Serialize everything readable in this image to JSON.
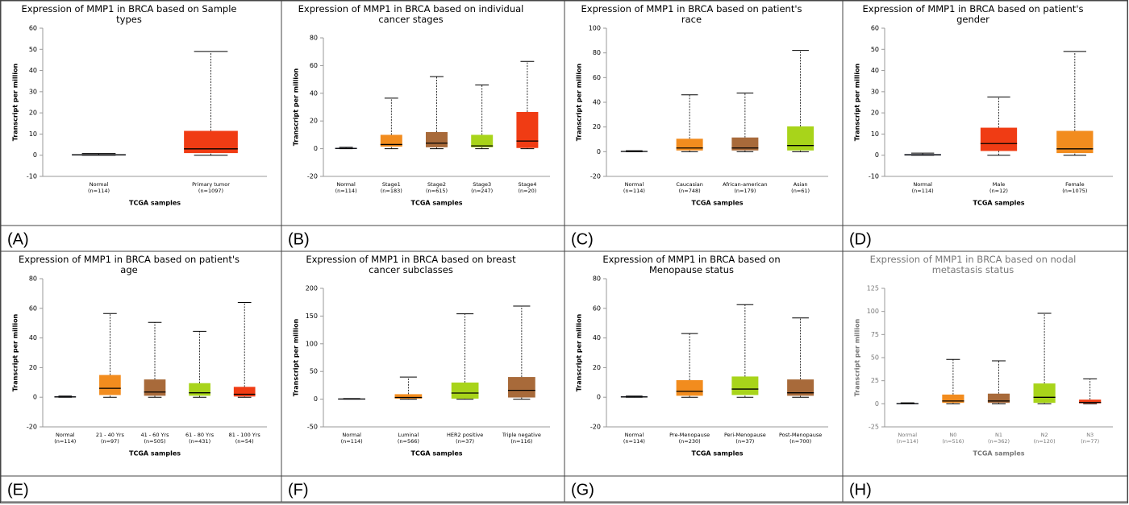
{
  "chart_data": [
    {
      "type": "box",
      "panel_label": "(A)",
      "title": "Expression of MMP1 in BRCA based on Sample types",
      "ylabel": "Transcript per million",
      "xlabel": "TCGA samples",
      "text_color": "#000000",
      "ylim": [
        -10,
        60
      ],
      "yticks": [
        -10,
        0,
        10,
        20,
        30,
        40,
        50,
        60
      ],
      "categories": [
        "Normal",
        "Primary tumor"
      ],
      "counts": [
        "(n=114)",
        "(n=1097)"
      ],
      "boxes": [
        {
          "min": 0,
          "q1": 0,
          "median": 0.2,
          "q3": 0.4,
          "max": 0.8,
          "color": "#1f3a8a"
        },
        {
          "min": 0,
          "q1": 1,
          "median": 3,
          "q3": 11.5,
          "max": 49,
          "color": "#f03c14"
        }
      ]
    },
    {
      "type": "box",
      "panel_label": "(B)",
      "title": "Expression of MMP1 in BRCA based on individual cancer stages",
      "ylabel": "Transcript per million",
      "xlabel": "TCGA samples",
      "text_color": "#000000",
      "ylim": [
        -20,
        80
      ],
      "yticks": [
        -20,
        0,
        20,
        40,
        60,
        80
      ],
      "categories": [
        "Normal",
        "Stage1",
        "Stage2",
        "Stage3",
        "Stage4"
      ],
      "counts": [
        "(n=114)",
        "(n=183)",
        "(n=615)",
        "(n=247)",
        "(n=20)"
      ],
      "boxes": [
        {
          "min": 0,
          "q1": 0,
          "median": 0.2,
          "q3": 0.5,
          "max": 1,
          "color": "#1f3a8a"
        },
        {
          "min": 0,
          "q1": 1.5,
          "median": 3,
          "q3": 10,
          "max": 36.5,
          "color": "#f28c1e"
        },
        {
          "min": 0,
          "q1": 1,
          "median": 4,
          "q3": 12,
          "max": 52,
          "color": "#a86a3a"
        },
        {
          "min": 0,
          "q1": 1,
          "median": 2,
          "q3": 10,
          "max": 46,
          "color": "#a8d41a"
        },
        {
          "min": 0,
          "q1": 0.5,
          "median": 5.5,
          "q3": 26.5,
          "max": 63,
          "color": "#f03c14"
        }
      ]
    },
    {
      "type": "box",
      "panel_label": "(C)",
      "title": "Expression of MMP1 in BRCA based on patient's race",
      "ylabel": "Transcript per million",
      "xlabel": "TCGA samples",
      "text_color": "#000000",
      "ylim": [
        -20,
        100
      ],
      "yticks": [
        -20,
        0,
        20,
        40,
        60,
        80,
        100
      ],
      "categories": [
        "Normal",
        "Caucasian",
        "African-american",
        "Asian"
      ],
      "counts": [
        "(n=114)",
        "(n=748)",
        "(n=179)",
        "(n=61)"
      ],
      "boxes": [
        {
          "min": 0,
          "q1": 0,
          "median": 0.2,
          "q3": 0.5,
          "max": 0.8,
          "color": "#1f3a8a"
        },
        {
          "min": 0,
          "q1": 1,
          "median": 3,
          "q3": 10.5,
          "max": 46,
          "color": "#f28c1e"
        },
        {
          "min": 0,
          "q1": 1,
          "median": 3,
          "q3": 11.5,
          "max": 47.5,
          "color": "#a86a3a"
        },
        {
          "min": 0,
          "q1": 1,
          "median": 5,
          "q3": 20.5,
          "max": 82,
          "color": "#a8d41a"
        }
      ]
    },
    {
      "type": "box",
      "panel_label": "(D)",
      "title": "Expression of MMP1 in BRCA based on patient's gender",
      "ylabel": "Transcript per million",
      "xlabel": "TCGA samples",
      "text_color": "#000000",
      "ylim": [
        -10,
        60
      ],
      "yticks": [
        -10,
        0,
        10,
        20,
        30,
        40,
        50,
        60
      ],
      "categories": [
        "Normal",
        "Male",
        "Female"
      ],
      "counts": [
        "(n=114)",
        "(n=12)",
        "(n=1075)"
      ],
      "boxes": [
        {
          "min": 0,
          "q1": 0,
          "median": 0.2,
          "q3": 0.5,
          "max": 1,
          "color": "#1f3a8a"
        },
        {
          "min": 0,
          "q1": 2,
          "median": 5.5,
          "q3": 13,
          "max": 27.5,
          "color": "#f03c14"
        },
        {
          "min": 0,
          "q1": 1,
          "median": 3,
          "q3": 11.5,
          "max": 49,
          "color": "#f28c1e"
        }
      ]
    },
    {
      "type": "box",
      "panel_label": "(E)",
      "title": "Expression of MMP1 in BRCA based on patient's age",
      "ylabel": "Transcript per million",
      "xlabel": "TCGA samples",
      "text_color": "#000000",
      "ylim": [
        -20,
        80
      ],
      "yticks": [
        -20,
        0,
        20,
        40,
        60,
        80
      ],
      "categories": [
        "Normal",
        "21 - 40 Yrs",
        "41 - 60 Yrs",
        "61 - 80 Yrs",
        "81 - 100 Yrs"
      ],
      "counts": [
        "(n=114)",
        "(n=97)",
        "(n=505)",
        "(n=431)",
        "(n=54)"
      ],
      "boxes": [
        {
          "min": 0,
          "q1": 0,
          "median": 0.2,
          "q3": 0.5,
          "max": 0.8,
          "color": "#1f3a8a"
        },
        {
          "min": 0,
          "q1": 1.5,
          "median": 6,
          "q3": 15,
          "max": 56.5,
          "color": "#f28c1e"
        },
        {
          "min": 0,
          "q1": 1,
          "median": 3.5,
          "q3": 12,
          "max": 50.5,
          "color": "#a86a3a"
        },
        {
          "min": 0,
          "q1": 1,
          "median": 3,
          "q3": 9.5,
          "max": 44.5,
          "color": "#a8d41a"
        },
        {
          "min": 0,
          "q1": 0.5,
          "median": 2,
          "q3": 7,
          "max": 64,
          "color": "#f03c14"
        }
      ]
    },
    {
      "type": "box",
      "panel_label": "(F)",
      "title": "Expression of MMP1 in BRCA based on breast cancer subclasses",
      "ylabel": "Transcript per million",
      "xlabel": "TCGA samples",
      "text_color": "#000000",
      "ylim": [
        -50,
        200
      ],
      "yticks": [
        -50,
        0,
        50,
        100,
        150,
        200
      ],
      "categories": [
        "Normal",
        "Luminal",
        "HER2 positive",
        "Triple negative"
      ],
      "counts": [
        "(n=114)",
        "(n=566)",
        "(n=37)",
        "(n=116)"
      ],
      "boxes": [
        {
          "min": 0,
          "q1": 0,
          "median": 0.3,
          "q3": 0.8,
          "max": 1,
          "color": "#1f3a8a"
        },
        {
          "min": 0,
          "q1": 1,
          "median": 3,
          "q3": 9,
          "max": 40,
          "color": "#f28c1e"
        },
        {
          "min": 0,
          "q1": 1,
          "median": 11,
          "q3": 30,
          "max": 154,
          "color": "#a8d41a"
        },
        {
          "min": 0,
          "q1": 3,
          "median": 16,
          "q3": 40,
          "max": 168,
          "color": "#a86a3a"
        }
      ]
    },
    {
      "type": "box",
      "panel_label": "(G)",
      "title": "Expression of MMP1 in BRCA based on Menopause status",
      "ylabel": "Transcript per million",
      "xlabel": "TCGA samples",
      "text_color": "#000000",
      "ylim": [
        -20,
        80
      ],
      "yticks": [
        -20,
        0,
        20,
        40,
        60,
        80
      ],
      "categories": [
        "Normal",
        "Pre-Menopause",
        "Peri-Menopause",
        "Post-Menopause"
      ],
      "counts": [
        "(n=114)",
        "(n=230)",
        "(n=37)",
        "(n=700)"
      ],
      "boxes": [
        {
          "min": 0,
          "q1": 0,
          "median": 0.2,
          "q3": 0.5,
          "max": 0.8,
          "color": "#1f3a8a"
        },
        {
          "min": 0,
          "q1": 1,
          "median": 4,
          "q3": 11.5,
          "max": 43,
          "color": "#f28c1e"
        },
        {
          "min": 0,
          "q1": 1.5,
          "median": 5.5,
          "q3": 14,
          "max": 62.5,
          "color": "#a8d41a"
        },
        {
          "min": 0,
          "q1": 1,
          "median": 3,
          "q3": 12,
          "max": 53.5,
          "color": "#a86a3a"
        }
      ]
    },
    {
      "type": "box",
      "panel_label": "(H)",
      "title": "Expression of MMP1 in BRCA based on nodal metastasis status",
      "ylabel": "Transcript per million",
      "xlabel": "TCGA samples",
      "text_color": "#777777",
      "ylim": [
        -25,
        125
      ],
      "yticks": [
        -25,
        0,
        25,
        50,
        75,
        100,
        125
      ],
      "categories": [
        "Normal",
        "N0",
        "N1",
        "N2",
        "N3"
      ],
      "counts": [
        "(n=114)",
        "(n=516)",
        "(n=362)",
        "(n=120)",
        "(n=77)"
      ],
      "boxes": [
        {
          "min": 0,
          "q1": 0,
          "median": 0.2,
          "q3": 0.5,
          "max": 1,
          "color": "#1f3a8a"
        },
        {
          "min": 0,
          "q1": 1,
          "median": 3,
          "q3": 10,
          "max": 48,
          "color": "#f28c1e"
        },
        {
          "min": 0,
          "q1": 1,
          "median": 3,
          "q3": 11,
          "max": 46.5,
          "color": "#a86a3a"
        },
        {
          "min": 0,
          "q1": 1,
          "median": 7,
          "q3": 22,
          "max": 98,
          "color": "#a8d41a"
        },
        {
          "min": 0,
          "q1": 0.5,
          "median": 1.5,
          "q3": 4.5,
          "max": 27,
          "color": "#f03c14"
        }
      ]
    }
  ]
}
